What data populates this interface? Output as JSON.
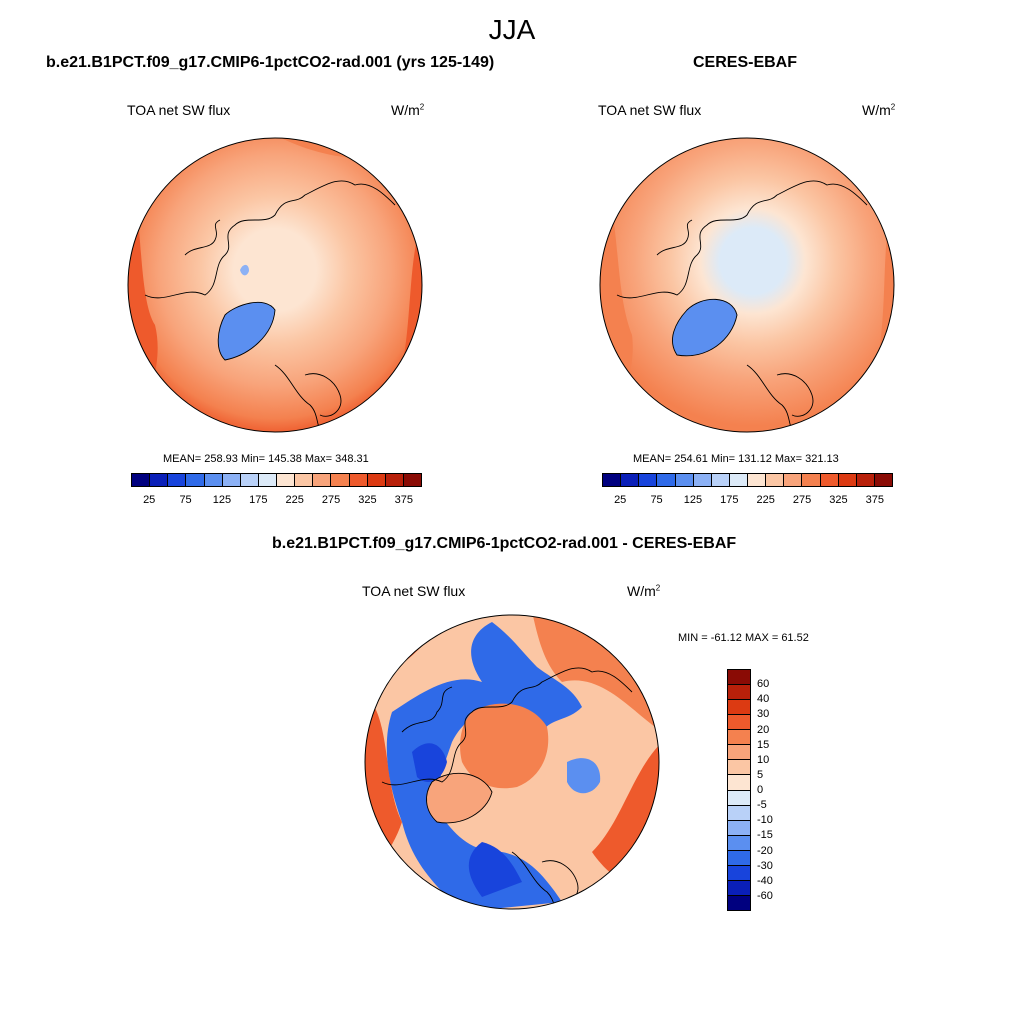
{
  "figure": {
    "season": "JJA"
  },
  "panels": [
    {
      "title": "b.e21.B1PCT.f09_g17.CMIP6-1pctCO2-rad.001 (yrs 125-149)",
      "variable": "TOA net SW flux",
      "units_base": "W/m",
      "units_exp": "2",
      "stats": "MEAN= 258.93  Min= 145.38  Max= 348.31"
    },
    {
      "title": "CERES-EBAF",
      "variable": "TOA net SW flux",
      "units_base": "W/m",
      "units_exp": "2",
      "stats": "MEAN= 254.61  Min= 131.12  Max= 321.13"
    },
    {
      "title": "b.e21.B1PCT.f09_g17.CMIP6-1pctCO2-rad.001 - CERES-EBAF",
      "variable": "TOA net SW flux",
      "units_base": "W/m",
      "units_exp": "2",
      "stats": "MIN = -61.12 MAX =  61.52"
    }
  ],
  "colorbars": {
    "absolute": {
      "tick_labels": [
        "25",
        "75",
        "125",
        "175",
        "225",
        "275",
        "325",
        "375"
      ],
      "colors": [
        "#00007f",
        "#0a1fb8",
        "#1844dc",
        "#2f6ae8",
        "#5b8ff0",
        "#8cb1f5",
        "#b9d1f8",
        "#dceaf8",
        "#fde5d2",
        "#fbc6a4",
        "#f8a47b",
        "#f4814f",
        "#ee5a2c",
        "#dc3a12",
        "#b8200a",
        "#8a0b05"
      ]
    },
    "difference": {
      "tick_labels": [
        "60",
        "40",
        "30",
        "20",
        "15",
        "10",
        "5",
        "0",
        "-5",
        "-10",
        "-15",
        "-20",
        "-30",
        "-40",
        "-60"
      ],
      "colors": [
        "#8a0b05",
        "#b8200a",
        "#dc3a12",
        "#ee5a2c",
        "#f4814f",
        "#f8a47b",
        "#fbc6a4",
        "#fde5d2",
        "#dceaf8",
        "#b9d1f8",
        "#8cb1f5",
        "#5b8ff0",
        "#2f6ae8",
        "#1844dc",
        "#0a1fb8",
        "#00007f"
      ]
    }
  }
}
